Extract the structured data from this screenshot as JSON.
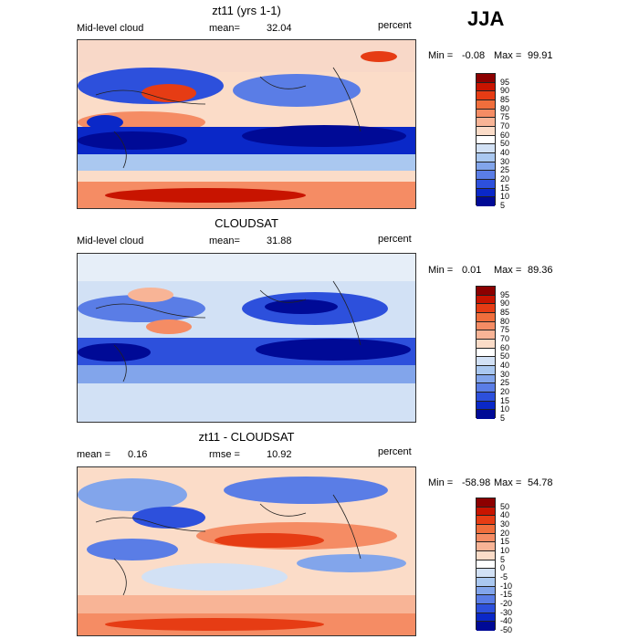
{
  "season": "JJA",
  "panels": [
    {
      "title": "zt11 (yrs 1-1)",
      "left_label": "Mid-level cloud",
      "stat_label": "mean=",
      "stat_value": "32.04",
      "units": "percent",
      "min_label": "Min =",
      "min_value": "-0.08",
      "max_label": "Max =",
      "max_value": "99.91",
      "scale_labels": [
        "95",
        "90",
        "85",
        "80",
        "75",
        "70",
        "60",
        "50",
        "40",
        "30",
        "25",
        "20",
        "15",
        "10",
        "5"
      ]
    },
    {
      "title": "CLOUDSAT",
      "left_label": "Mid-level cloud",
      "stat_label": "mean=",
      "stat_value": "31.88",
      "units": "percent",
      "min_label": "Min =",
      "min_value": "0.01",
      "max_label": "Max =",
      "max_value": "89.36",
      "scale_labels": [
        "95",
        "90",
        "85",
        "80",
        "75",
        "70",
        "60",
        "50",
        "40",
        "30",
        "25",
        "20",
        "15",
        "10",
        "5"
      ]
    },
    {
      "title": "zt11 - CLOUDSAT",
      "left_label": "mean =",
      "left_value": "0.16",
      "stat_label": "rmse =",
      "stat_value": "10.92",
      "units": "percent",
      "min_label": "Min =",
      "min_value": "-58.98",
      "max_label": "Max =",
      "max_value": "54.78",
      "scale_labels": [
        "50",
        "40",
        "30",
        "20",
        "15",
        "10",
        "5",
        "0",
        "-5",
        "-10",
        "-15",
        "-20",
        "-30",
        "-40",
        "-50"
      ]
    }
  ],
  "colors": {
    "scale": [
      "#8c0000",
      "#c81400",
      "#e63c14",
      "#f06e3c",
      "#f58c64",
      "#f8b496",
      "#fbdcc8",
      "#ffffff",
      "#d2e1f5",
      "#aac8f0",
      "#82a5eb",
      "#5a7de6",
      "#2d50dc",
      "#0a28c8",
      "#000a96"
    ]
  }
}
